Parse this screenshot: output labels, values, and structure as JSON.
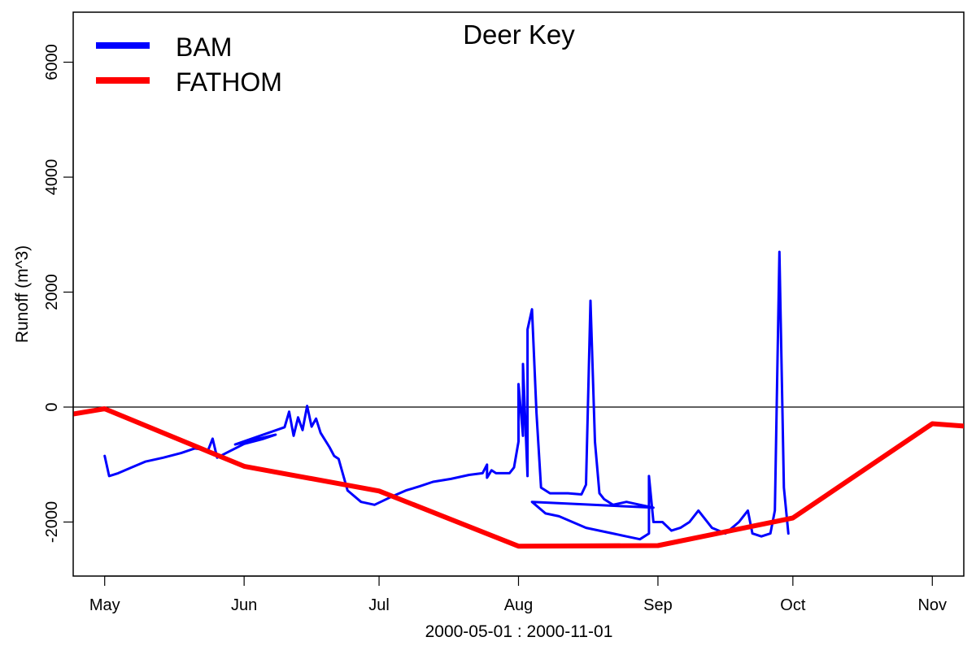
{
  "chart_data": {
    "type": "line",
    "title": "Deer Key",
    "xlabel": "2000-05-01 : 2000-11-01",
    "ylabel": "Runoff (m^3)",
    "x_ticks": [
      {
        "label": "May",
        "date": "2000-05-01"
      },
      {
        "label": "Jun",
        "date": "2000-06-01"
      },
      {
        "label": "Jul",
        "date": "2000-07-01"
      },
      {
        "label": "Aug",
        "date": "2000-08-01"
      },
      {
        "label": "Sep",
        "date": "2000-09-01"
      },
      {
        "label": "Oct",
        "date": "2000-10-01"
      },
      {
        "label": "Nov",
        "date": "2000-11-01"
      }
    ],
    "y_ticks": [
      -2000,
      0,
      2000,
      4000,
      6000
    ],
    "y_tick_labels": [
      "-2000",
      "0",
      "2000",
      "4000",
      "6000"
    ],
    "xlim": [
      "2000-04-24",
      "2000-11-08"
    ],
    "ylim": [
      -2940,
      6870
    ],
    "reference_line": {
      "y": 0,
      "color": "#000000"
    },
    "grid": false,
    "legend": {
      "position": "top-left"
    },
    "series": [
      {
        "name": "BAM",
        "color": "#0000ff",
        "points": [
          [
            "2000-05-01",
            -850
          ],
          [
            "2000-05-02",
            -1200
          ],
          [
            "2000-05-04",
            -1150
          ],
          [
            "2000-05-07",
            -1050
          ],
          [
            "2000-05-10",
            -950
          ],
          [
            "2000-05-14",
            -880
          ],
          [
            "2000-05-18",
            -800
          ],
          [
            "2000-05-21",
            -720
          ],
          [
            "2000-05-24",
            -750
          ],
          [
            "2000-05-25",
            -550
          ],
          [
            "2000-05-26",
            -880
          ],
          [
            "2000-05-28",
            -800
          ],
          [
            "2000-06-01",
            -640
          ],
          [
            "2000-06-05",
            -560
          ],
          [
            "2000-06-08",
            -480
          ],
          [
            "2000-05-30",
            -650
          ],
          [
            "2000-06-10",
            -350
          ],
          [
            "2000-06-11",
            -80
          ],
          [
            "2000-06-12",
            -500
          ],
          [
            "2000-06-13",
            -180
          ],
          [
            "2000-06-14",
            -400
          ],
          [
            "2000-06-15",
            20
          ],
          [
            "2000-06-16",
            -340
          ],
          [
            "2000-06-17",
            -200
          ],
          [
            "2000-06-18",
            -450
          ],
          [
            "2000-06-20",
            -700
          ],
          [
            "2000-06-21",
            -850
          ],
          [
            "2000-06-22",
            -900
          ],
          [
            "2000-06-24",
            -1450
          ],
          [
            "2000-06-27",
            -1650
          ],
          [
            "2000-06-30",
            -1700
          ],
          [
            "2000-07-04",
            -1550
          ],
          [
            "2000-07-07",
            -1450
          ],
          [
            "2000-07-10",
            -1380
          ],
          [
            "2000-07-13",
            -1300
          ],
          [
            "2000-07-17",
            -1250
          ],
          [
            "2000-07-21",
            -1180
          ],
          [
            "2000-07-24",
            -1150
          ],
          [
            "2000-07-25",
            -1000
          ],
          [
            "2000-07-25",
            -1230
          ],
          [
            "2000-07-26",
            -1100
          ],
          [
            "2000-07-27",
            -1150
          ],
          [
            "2000-07-30",
            -1150
          ],
          [
            "2000-07-31",
            -1050
          ],
          [
            "2000-08-01",
            -600
          ],
          [
            "2000-08-01",
            400
          ],
          [
            "2000-08-02",
            -500
          ],
          [
            "2000-08-02",
            750
          ],
          [
            "2000-08-03",
            -1200
          ],
          [
            "2000-08-03",
            1350
          ],
          [
            "2000-08-04",
            1700
          ],
          [
            "2000-08-05",
            -100
          ],
          [
            "2000-08-06",
            -1400
          ],
          [
            "2000-08-08",
            -1500
          ],
          [
            "2000-08-12",
            -1500
          ],
          [
            "2000-08-15",
            -1520
          ],
          [
            "2000-08-16",
            -1350
          ],
          [
            "2000-08-17",
            1850
          ],
          [
            "2000-08-18",
            -600
          ],
          [
            "2000-08-19",
            -1500
          ],
          [
            "2000-08-20",
            -1600
          ],
          [
            "2000-08-22",
            -1700
          ],
          [
            "2000-08-25",
            -1650
          ],
          [
            "2000-08-28",
            -1700
          ],
          [
            "2000-08-31",
            -1750
          ],
          [
            "2000-08-04",
            -1650
          ],
          [
            "2000-08-07",
            -1850
          ],
          [
            "2000-08-10",
            -1900
          ],
          [
            "2000-08-13",
            -2000
          ],
          [
            "2000-08-16",
            -2100
          ],
          [
            "2000-08-19",
            -2150
          ],
          [
            "2000-08-22",
            -2200
          ],
          [
            "2000-08-25",
            -2250
          ],
          [
            "2000-08-28",
            -2300
          ],
          [
            "2000-08-30",
            -2200
          ],
          [
            "2000-08-30",
            -1200
          ],
          [
            "2000-08-31",
            -2000
          ],
          [
            "2000-09-02",
            -2000
          ],
          [
            "2000-09-04",
            -2150
          ],
          [
            "2000-09-06",
            -2100
          ],
          [
            "2000-09-08",
            -2000
          ],
          [
            "2000-09-10",
            -1800
          ],
          [
            "2000-09-13",
            -2100
          ],
          [
            "2000-09-16",
            -2200
          ],
          [
            "2000-09-19",
            -2000
          ],
          [
            "2000-09-21",
            -1800
          ],
          [
            "2000-09-22",
            -2200
          ],
          [
            "2000-09-24",
            -2250
          ],
          [
            "2000-09-26",
            -2200
          ],
          [
            "2000-09-27",
            -1800
          ],
          [
            "2000-09-28",
            2700
          ],
          [
            "2000-09-29",
            -1400
          ],
          [
            "2000-09-30",
            -2200
          ]
        ]
      },
      {
        "name": "FATHOM",
        "color": "#ff0000",
        "points": [
          [
            "2000-04-24",
            -120
          ],
          [
            "2000-05-01",
            -30
          ],
          [
            "2000-06-01",
            -1030
          ],
          [
            "2000-07-01",
            -1460
          ],
          [
            "2000-08-01",
            -2420
          ],
          [
            "2000-09-01",
            -2410
          ],
          [
            "2000-10-01",
            -1930
          ],
          [
            "2000-11-01",
            -290
          ],
          [
            "2000-11-08",
            -330
          ]
        ]
      }
    ]
  }
}
